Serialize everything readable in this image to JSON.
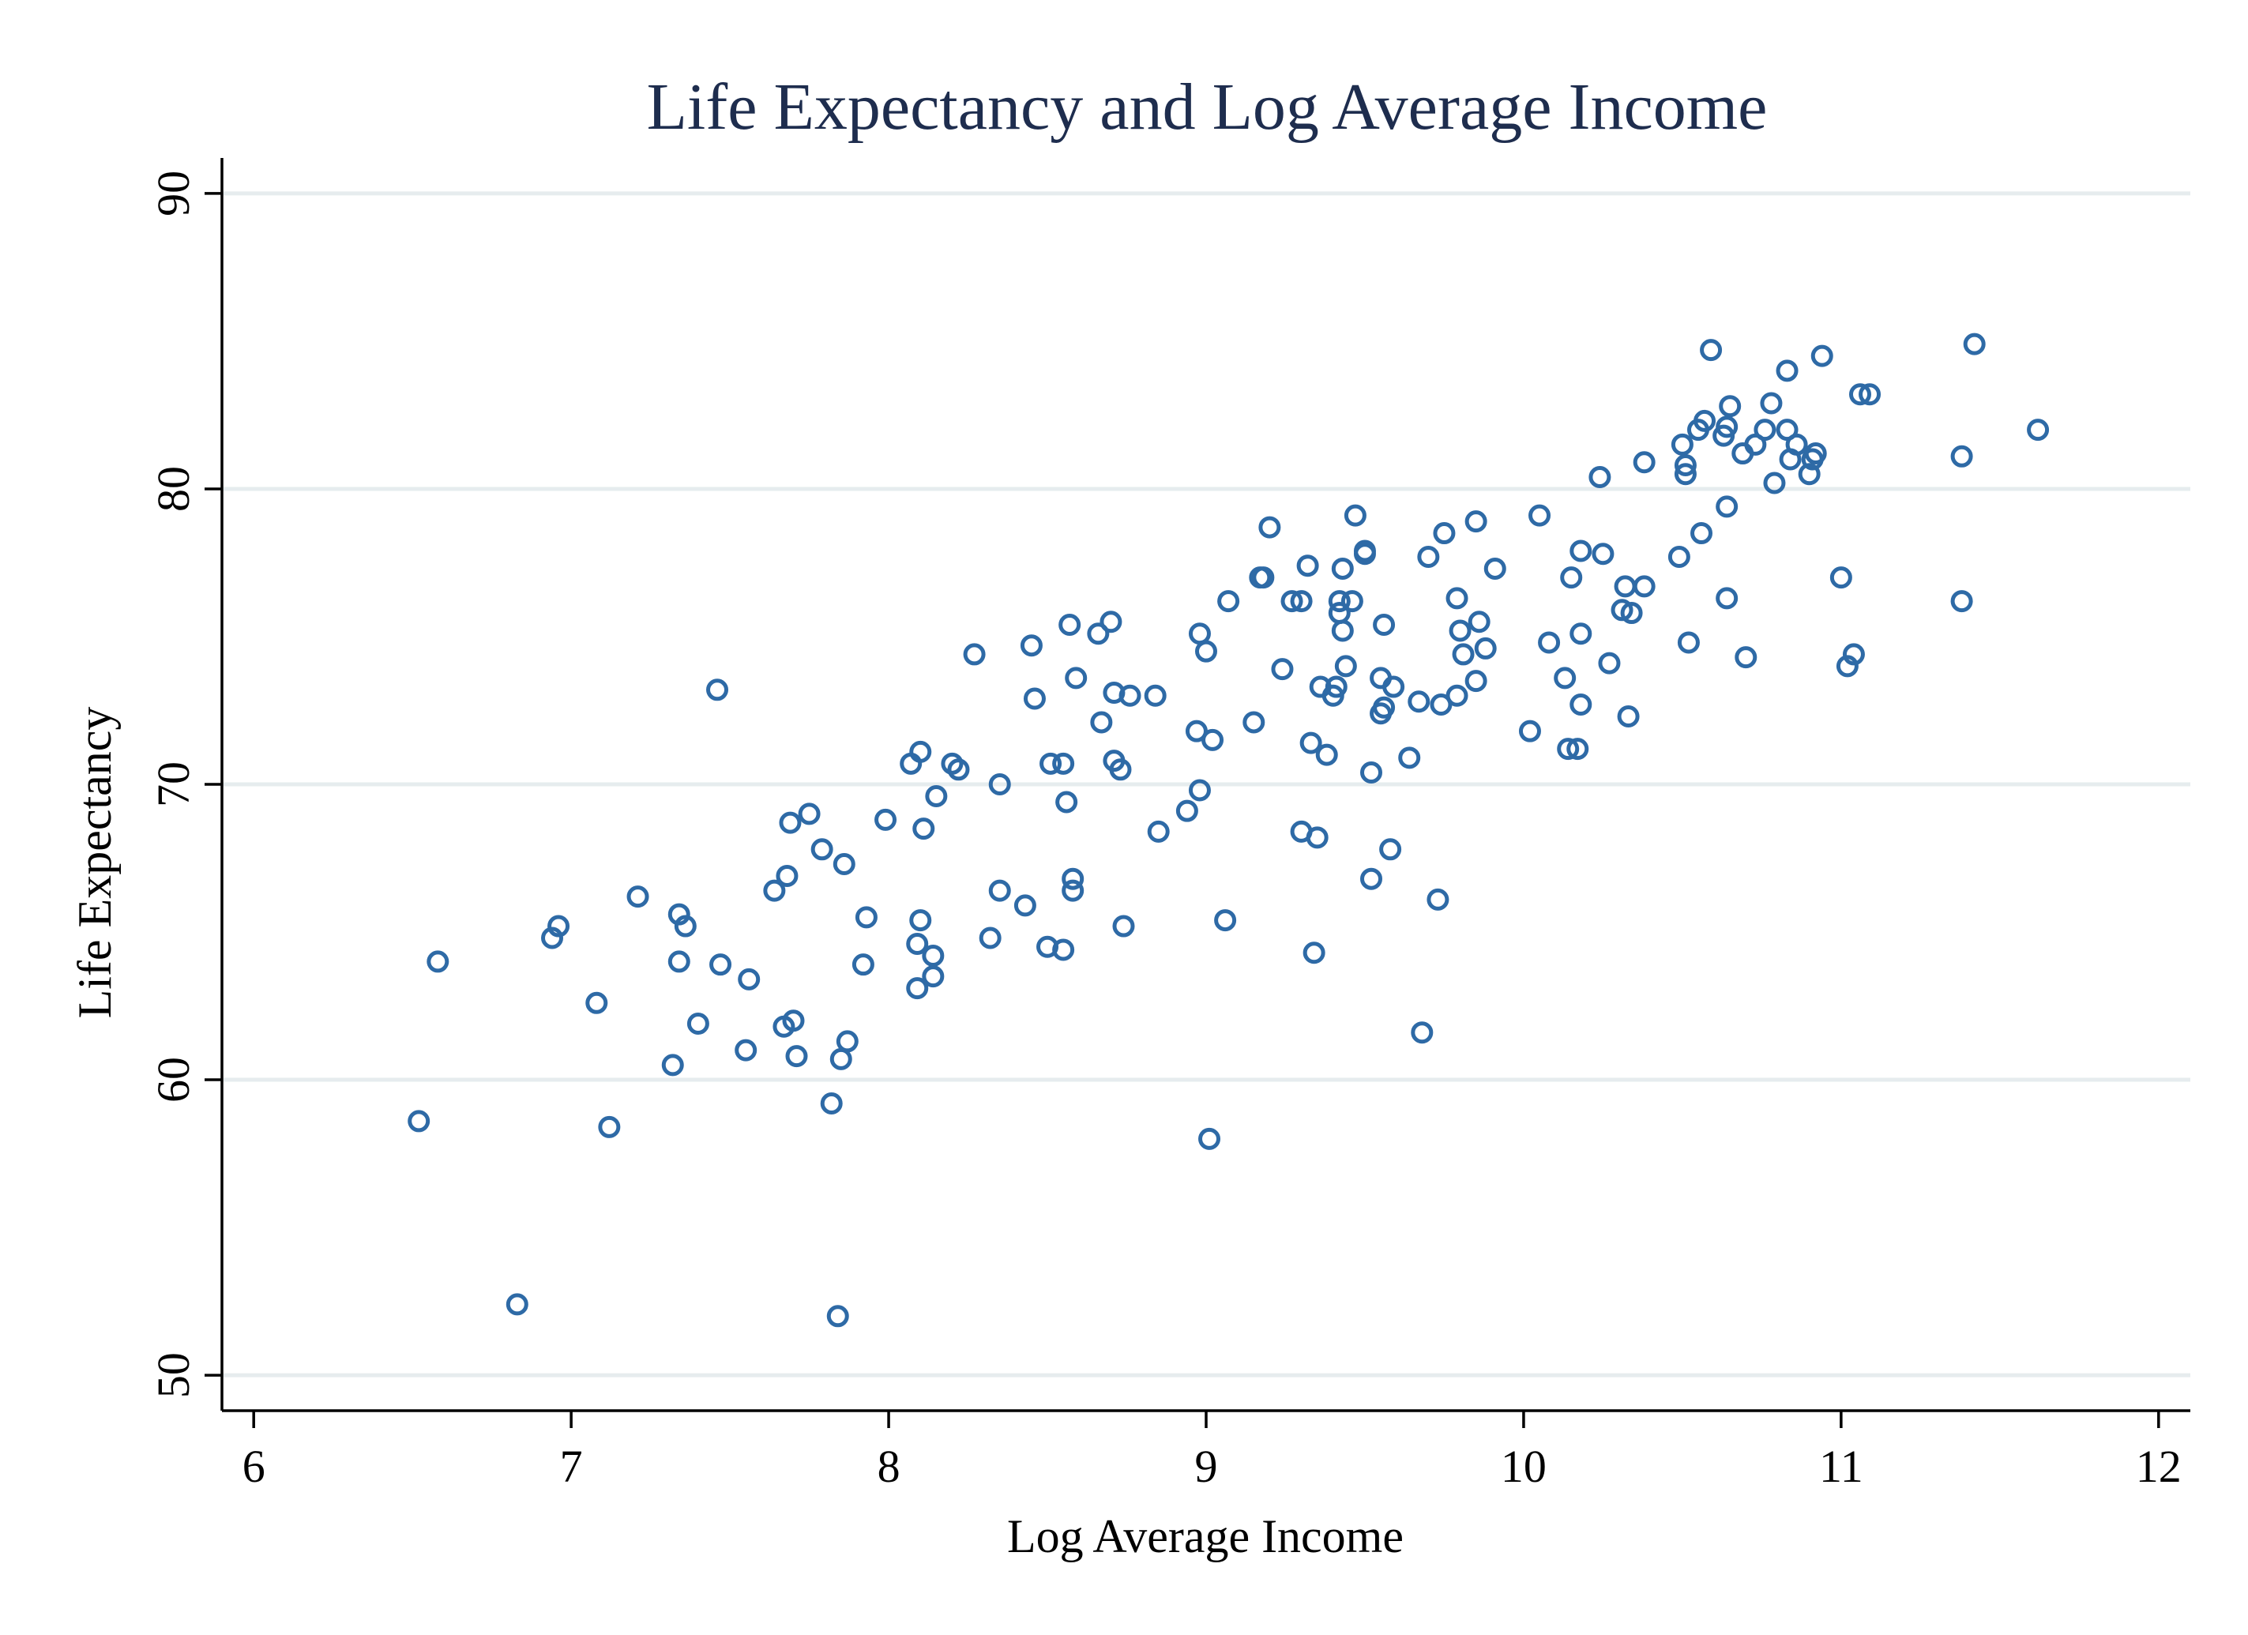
{
  "chart_data": {
    "type": "scatter",
    "title": "Life Expectancy and Log Average Income",
    "xlabel": "Log Average Income",
    "ylabel": "Life Expectancy",
    "xlim": [
      5.9,
      12.1
    ],
    "ylim": [
      48.8,
      91.2
    ],
    "xticks": [
      6,
      7,
      8,
      9,
      10,
      11,
      12
    ],
    "yticks": [
      50,
      60,
      70,
      80,
      90
    ],
    "grid": true,
    "legend": "none",
    "marker_color": "#2e6aa6",
    "series": [
      {
        "marker": "hollow-circle",
        "x": [
          6.52,
          6.58,
          6.83,
          6.94,
          6.96,
          7.08,
          7.12,
          7.21,
          7.32,
          7.34,
          7.34,
          7.36,
          7.4,
          7.46,
          7.47,
          7.55,
          7.56,
          7.64,
          7.67,
          7.68,
          7.69,
          7.7,
          7.71,
          7.75,
          7.79,
          7.82,
          7.84,
          7.85,
          7.86,
          7.87,
          7.92,
          7.93,
          7.99,
          8.07,
          8.09,
          8.09,
          8.1,
          8.1,
          8.11,
          8.14,
          8.14,
          8.15,
          8.2,
          8.22,
          8.27,
          8.32,
          8.35,
          8.35,
          8.43,
          8.45,
          8.46,
          8.5,
          8.51,
          8.55,
          8.55,
          8.56,
          8.57,
          8.58,
          8.58,
          8.59,
          8.66,
          8.67,
          8.7,
          8.71,
          8.71,
          8.73,
          8.74,
          8.76,
          8.84,
          8.85,
          8.94,
          8.97,
          8.98,
          8.98,
          9.0,
          9.01,
          9.02,
          9.06,
          9.07,
          9.15,
          9.17,
          9.18,
          9.2,
          9.24,
          9.27,
          9.3,
          9.3,
          9.32,
          9.33,
          9.34,
          9.35,
          9.36,
          9.38,
          9.4,
          9.41,
          9.42,
          9.42,
          9.43,
          9.43,
          9.44,
          9.46,
          9.47,
          9.5,
          9.5,
          9.52,
          9.52,
          9.55,
          9.55,
          9.56,
          9.56,
          9.58,
          9.59,
          9.64,
          9.67,
          9.68,
          9.7,
          9.73,
          9.74,
          9.75,
          9.79,
          9.79,
          9.8,
          9.81,
          9.85,
          9.85,
          9.86,
          9.88,
          9.91,
          10.02,
          10.05,
          10.08,
          10.13,
          10.14,
          10.15,
          10.17,
          10.18,
          10.18,
          10.18,
          10.24,
          10.25,
          10.27,
          10.31,
          10.32,
          10.33,
          10.34,
          10.38,
          10.38,
          10.49,
          10.5,
          10.51,
          10.51,
          10.52,
          10.55,
          10.56,
          10.57,
          10.59,
          10.63,
          10.64,
          10.64,
          10.64,
          10.65,
          10.69,
          10.7,
          10.73,
          10.76,
          10.78,
          10.79,
          10.83,
          10.83,
          10.84,
          10.86,
          10.9,
          10.91,
          10.92,
          10.94,
          11.0,
          11.02,
          11.04,
          11.06,
          11.09,
          11.38,
          11.38,
          11.42,
          11.62
        ],
        "y": [
          58.6,
          64.0,
          52.4,
          64.8,
          65.2,
          62.6,
          58.4,
          66.2,
          60.5,
          64.0,
          65.6,
          65.2,
          61.9,
          73.2,
          63.9,
          61.0,
          63.4,
          66.4,
          61.8,
          66.9,
          68.7,
          62.0,
          60.8,
          69.0,
          67.8,
          59.2,
          52.0,
          60.7,
          67.3,
          61.3,
          63.9,
          65.5,
          68.8,
          70.7,
          63.1,
          64.6,
          65.4,
          71.1,
          68.5,
          63.5,
          64.2,
          69.6,
          70.7,
          70.5,
          74.4,
          64.8,
          70.0,
          66.4,
          65.9,
          74.7,
          72.9,
          64.5,
          70.7,
          64.4,
          70.7,
          69.4,
          75.4,
          66.8,
          66.4,
          73.6,
          75.1,
          72.1,
          75.5,
          73.1,
          70.8,
          70.5,
          65.2,
          73.0,
          73.0,
          68.4,
          69.1,
          71.8,
          75.1,
          69.8,
          74.5,
          58.0,
          71.5,
          65.4,
          76.2,
          72.1,
          77.0,
          77.0,
          78.7,
          73.9,
          76.2,
          68.4,
          76.2,
          77.4,
          71.4,
          64.3,
          68.2,
          73.3,
          71.0,
          73.0,
          73.3,
          75.8,
          76.2,
          77.3,
          75.2,
          74.0,
          76.2,
          79.1,
          77.9,
          77.8,
          70.4,
          66.8,
          73.6,
          72.4,
          72.6,
          75.4,
          67.8,
          73.3,
          70.9,
          72.8,
          61.6,
          77.7,
          66.1,
          72.7,
          78.5,
          76.3,
          73.0,
          75.2,
          74.4,
          73.5,
          78.9,
          75.5,
          74.6,
          77.3,
          71.8,
          79.1,
          74.8,
          73.6,
          71.2,
          77.0,
          71.2,
          77.9,
          72.7,
          75.1,
          80.4,
          77.8,
          74.1,
          75.9,
          76.7,
          72.3,
          75.8,
          76.7,
          80.9,
          77.7,
          81.5,
          80.5,
          80.8,
          74.8,
          82.0,
          78.5,
          82.3,
          84.7,
          81.8,
          82.1,
          79.4,
          76.3,
          82.8,
          81.2,
          74.3,
          81.5,
          82.0,
          82.9,
          80.2,
          84.0,
          82.0,
          81.0,
          81.5,
          80.5,
          81.0,
          81.2,
          84.5,
          77.0,
          74.0,
          74.4,
          83.2,
          83.2,
          81.1,
          76.2,
          84.9,
          82.0
        ]
      }
    ]
  }
}
